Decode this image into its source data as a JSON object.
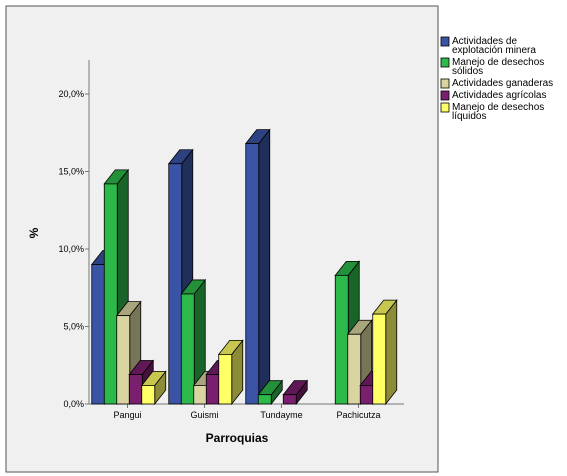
{
  "chart_data": {
    "type": "bar",
    "title": "",
    "xlabel": "Parroquias",
    "ylabel": "%",
    "ylim": [
      0,
      22
    ],
    "yticks": [
      0,
      5,
      10,
      15,
      20
    ],
    "ytick_labels": [
      "0,0%",
      "5,0%",
      "10,0%",
      "15,0%",
      "20,0%"
    ],
    "categories": [
      "Pangui",
      "Guismi",
      "Tundayme",
      "Pachicutza"
    ],
    "grid": false,
    "legend_position": "right",
    "series": [
      {
        "name": "Actividades de explotación minera",
        "legend_lines": [
          "Actividades de",
          "explotación minera"
        ],
        "color": "#3b53a4",
        "values": [
          9.0,
          15.5,
          16.8,
          0
        ]
      },
      {
        "name": "Manejo de desechos sólidos",
        "legend_lines": [
          "Manejo de desechos",
          "sólidos"
        ],
        "color": "#2db84a",
        "values": [
          14.2,
          7.1,
          0.6,
          8.3
        ]
      },
      {
        "name": "Actividades ganaderas",
        "legend_lines": [
          "Actividades ganaderas"
        ],
        "color": "#d9d4a0",
        "values": [
          5.7,
          1.2,
          0,
          4.5
        ]
      },
      {
        "name": "Actividades agrícolas",
        "legend_lines": [
          "Actividades agrícolas"
        ],
        "color": "#7a1f6d",
        "values": [
          1.9,
          1.9,
          0.6,
          1.2
        ]
      },
      {
        "name": "Manejo de desechos líquidos",
        "legend_lines": [
          "Manejo de desechos",
          "líquidos"
        ],
        "color": "#ffff66",
        "values": [
          1.2,
          3.2,
          0,
          5.8
        ]
      }
    ]
  }
}
